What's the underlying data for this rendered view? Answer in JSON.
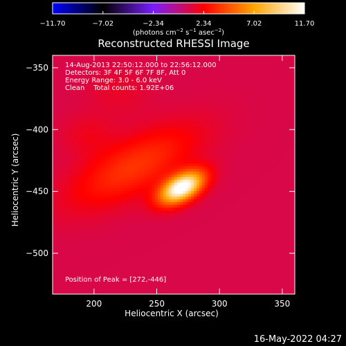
{
  "chart_data": {
    "type": "heatmap",
    "title": "Reconstructed RHESSI Image",
    "xlabel": "Heliocentric X (arcsec)",
    "ylabel": "Heliocentric Y (arcsec)",
    "xlim": [
      167,
      360
    ],
    "ylim": [
      -533,
      -340
    ],
    "xticks": [
      200,
      250,
      300,
      350
    ],
    "yticks": [
      -350,
      -400,
      -450,
      -500
    ],
    "colorbar": {
      "ticks": [
        -11.7,
        -7.02,
        -2.34,
        2.34,
        7.02,
        11.7
      ],
      "tick_labels": [
        "−11.70",
        "−7.02",
        "−2.34",
        "2.34",
        "7.02",
        "11.70"
      ],
      "range": [
        -11.7,
        11.7
      ],
      "unit": "(photons cm⁻² s⁻¹ asec⁻²)",
      "colormap": [
        "#0000ff",
        "#000000",
        "#7a1cff",
        "#ff0000",
        "#ffa500",
        "#ffffff"
      ]
    },
    "annotations": {
      "time_range": "14-Aug-2013 22:50:12.000 to 22:56:12.000",
      "detectors": "Detectors: 3F 4F 5F 6F 7F 8F, Att 0",
      "energy": "Energy Range: 3.0 - 6.0 keV",
      "clean": "Clean    Total counts: 1.92E+06",
      "peak": "Position of Peak = [272,-446]"
    },
    "peak": {
      "x": 272,
      "y": -446,
      "value": 11.7
    },
    "sources": [
      {
        "x": 270,
        "y": -447,
        "amplitude": 11.7,
        "sigma_x": 13,
        "sigma_y": 7,
        "rotation_deg": 30
      },
      {
        "x": 232,
        "y": -430,
        "amplitude": 2.8,
        "sigma_x": 38,
        "sigma_y": 15,
        "rotation_deg": 28
      },
      {
        "x": 195,
        "y": -405,
        "amplitude": 0.8,
        "sigma_x": 15,
        "sigma_y": 12,
        "rotation_deg": 0
      },
      {
        "x": 220,
        "y": -370,
        "amplitude": 0.6,
        "sigma_x": 18,
        "sigma_y": 14,
        "rotation_deg": 0
      }
    ],
    "background_level": 1.0
  },
  "footer": {
    "timestamp": "16-May-2022 04:27"
  }
}
